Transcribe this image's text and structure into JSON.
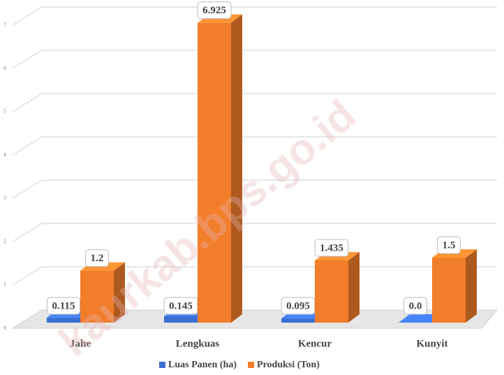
{
  "chart_data": {
    "type": "bar3d",
    "categories": [
      "Jahe",
      "Lengkuas",
      "Kencur",
      "Kunyit"
    ],
    "series": [
      {
        "name": "Luas Panen (ha)",
        "color": "#3a6fd1",
        "values": [
          0.115,
          0.145,
          0.095,
          0.0
        ],
        "value_labels": [
          "0.115",
          "0.145",
          "0.095",
          "0.0"
        ]
      },
      {
        "name": "Produksi (Ton)",
        "color": "#f27d2b",
        "values": [
          1.2,
          6.925,
          1.435,
          1.5
        ]
      }
    ],
    "ylim": [
      0,
      7.5
    ],
    "yticks": [
      0,
      1,
      2,
      3,
      4,
      5,
      6,
      7
    ],
    "grid": true,
    "legend": "bottom",
    "watermark": "kaurkab.bps.go.id"
  }
}
